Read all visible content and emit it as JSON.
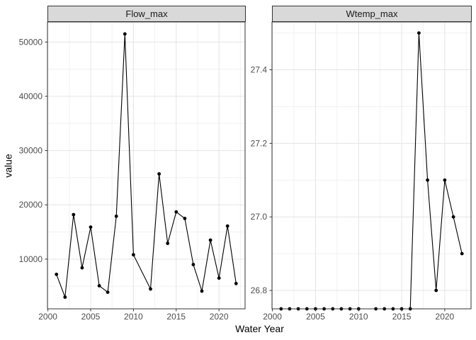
{
  "figure": {
    "y_axis_title": "value",
    "x_axis_title": "Water Year",
    "colors": {
      "background": "#ffffff",
      "strip_background": "#d9d9d9",
      "panel_background": "#ffffff",
      "panel_border": "#333333",
      "grid_major": "#e4e4e4",
      "grid_minor": "#f1f1f1",
      "series": "#000000",
      "tick_text": "#4d4d4d",
      "tick_mark": "#333333"
    }
  },
  "chart_data": [
    {
      "type": "line",
      "facet": "Flow_max",
      "xlabel": "Water Year",
      "ylabel": "value",
      "x": [
        2001,
        2002,
        2003,
        2004,
        2005,
        2006,
        2007,
        2008,
        2009,
        2010,
        2012,
        2013,
        2014,
        2015,
        2016,
        2017,
        2018,
        2019,
        2020,
        2021,
        2022
      ],
      "values": [
        7200,
        3000,
        18200,
        8400,
        15900,
        5100,
        3900,
        17900,
        51500,
        10800,
        4500,
        25700,
        12900,
        18700,
        17500,
        9000,
        4100,
        13500,
        6500,
        16100,
        5500
      ],
      "note": "year 2011 has no data point; line connects 2010 to 2012",
      "xlim": [
        1999.95,
        2023.05
      ],
      "ylim": [
        840,
        53700
      ],
      "xtick_values": [
        2000,
        2005,
        2010,
        2015,
        2020
      ],
      "xtick_labels": [
        "2000",
        "2005",
        "2010",
        "2015",
        "2020"
      ],
      "xtick_minor": [
        2002.5,
        2007.5,
        2012.5,
        2017.5,
        2022.5
      ],
      "ytick_values": [
        10000,
        20000,
        30000,
        40000,
        50000
      ],
      "ytick_labels": [
        "10000",
        "20000",
        "30000",
        "40000",
        "50000"
      ],
      "ytick_minor": [
        5000,
        15000,
        25000,
        35000,
        45000
      ],
      "grid": true,
      "legend": "none"
    },
    {
      "type": "line",
      "facet": "Wtemp_max",
      "xlabel": "Water Year",
      "ylabel": "value",
      "x": [
        2001,
        2002,
        2003,
        2004,
        2005,
        2006,
        2007,
        2008,
        2009,
        2010,
        2012,
        2013,
        2014,
        2015,
        2016,
        2017,
        2018,
        2019,
        2020,
        2021,
        2022
      ],
      "values": [
        26.75,
        26.75,
        26.75,
        26.75,
        26.75,
        26.75,
        26.75,
        26.75,
        26.75,
        26.75,
        26.75,
        26.75,
        26.75,
        26.75,
        26.75,
        27.5,
        27.1,
        26.8,
        27.1,
        27.0,
        26.9
      ],
      "note": "year 2011 has no data point; flat baseline 2001-2016 at ~26.75 sits on the panel floor",
      "xlim": [
        1999.95,
        2023.05
      ],
      "ylim": [
        26.75,
        27.53
      ],
      "xtick_values": [
        2000,
        2005,
        2010,
        2015,
        2020
      ],
      "xtick_labels": [
        "2000",
        "2005",
        "2010",
        "2015",
        "2020"
      ],
      "xtick_minor": [
        2002.5,
        2007.5,
        2012.5,
        2017.5,
        2022.5
      ],
      "ytick_values": [
        26.8,
        27.0,
        27.2,
        27.4
      ],
      "ytick_labels": [
        "26.8",
        "27.0",
        "27.2",
        "27.4"
      ],
      "ytick_minor": [
        26.9,
        27.1,
        27.3,
        27.5
      ],
      "grid": true,
      "legend": "none"
    }
  ]
}
